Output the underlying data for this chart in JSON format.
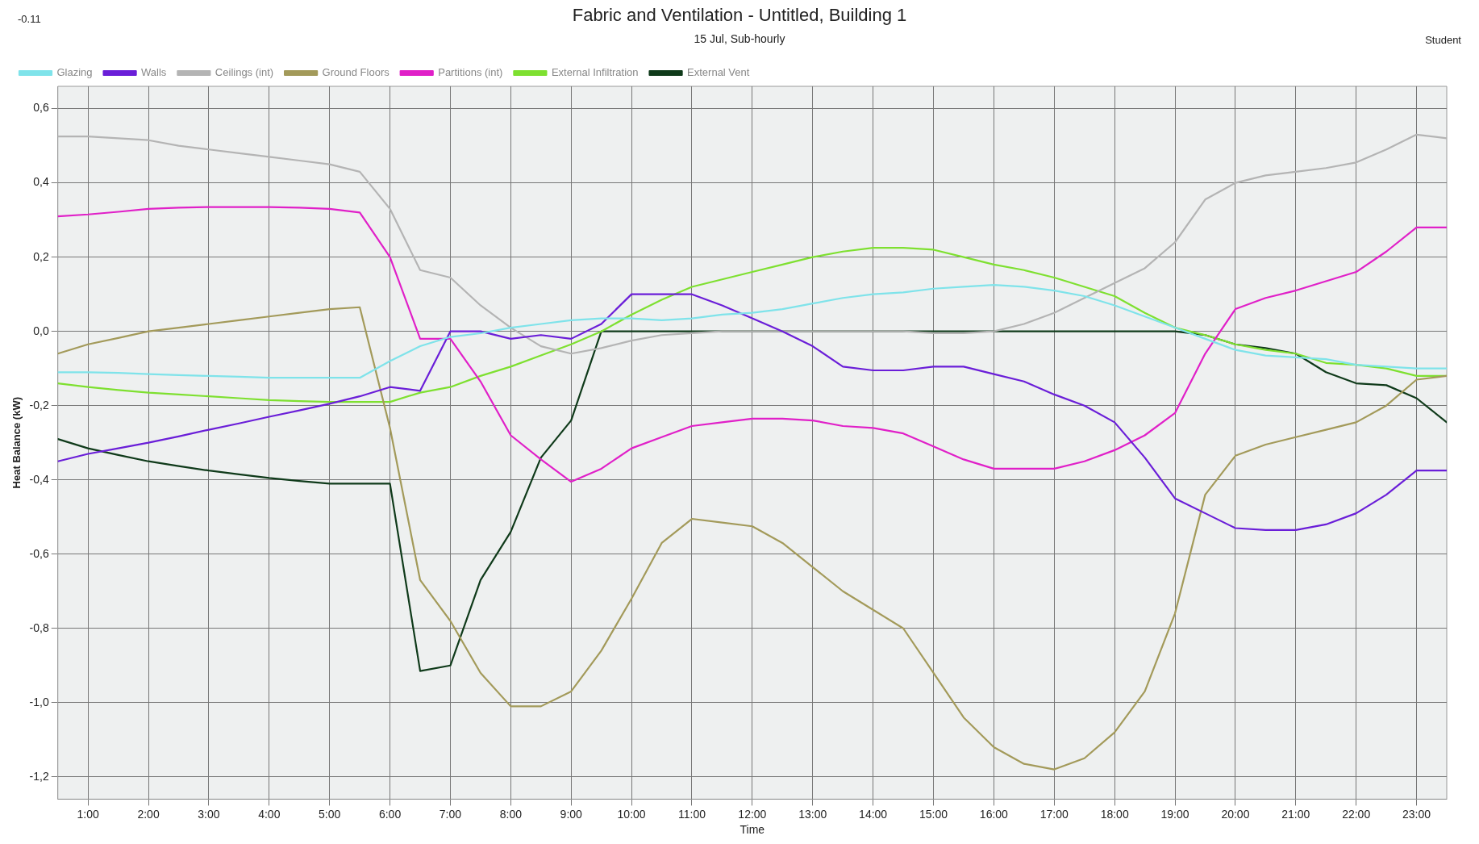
{
  "chart_data": {
    "type": "line",
    "title": "Fabric and Ventilation - Untitled, Building 1",
    "subtitle": "15 Jul, Sub-hourly",
    "xlabel": "Time",
    "ylabel": "Heat Balance (kW)",
    "annotations": [
      "-0.11",
      "Student"
    ],
    "x": [
      0.5,
      1,
      1.5,
      2,
      2.5,
      3,
      3.5,
      4,
      4.5,
      5,
      5.5,
      6,
      6.5,
      7,
      7.5,
      8,
      8.5,
      9,
      9.5,
      10,
      10.5,
      11,
      11.5,
      12,
      12.5,
      13,
      13.5,
      14,
      14.5,
      15,
      15.5,
      16,
      16.5,
      17,
      17.5,
      18,
      18.5,
      19,
      19.5,
      20,
      20.5,
      21,
      21.5,
      22,
      22.5,
      23,
      23.5
    ],
    "series": [
      {
        "name": "Glazing",
        "color": "#7fe3ea",
        "values": [
          -0.11,
          -0.11,
          -0.112,
          -0.115,
          -0.118,
          -0.12,
          -0.122,
          -0.125,
          -0.125,
          -0.125,
          -0.125,
          -0.08,
          -0.04,
          -0.015,
          -0.005,
          0.01,
          0.02,
          0.03,
          0.035,
          0.035,
          0.03,
          0.035,
          0.045,
          0.05,
          0.06,
          0.075,
          0.09,
          0.1,
          0.105,
          0.115,
          0.12,
          0.125,
          0.12,
          0.11,
          0.095,
          0.07,
          0.04,
          0.01,
          -0.02,
          -0.05,
          -0.065,
          -0.07,
          -0.075,
          -0.09,
          -0.095,
          -0.1,
          -0.1
        ]
      },
      {
        "name": "Walls",
        "color": "#6a1ed8",
        "values": [
          -0.35,
          -0.33,
          -0.315,
          -0.3,
          -0.283,
          -0.265,
          -0.248,
          -0.23,
          -0.213,
          -0.195,
          -0.175,
          -0.15,
          -0.16,
          0.0,
          0.0,
          -0.02,
          -0.01,
          -0.02,
          0.02,
          0.1,
          0.1,
          0.1,
          0.07,
          0.035,
          0.0,
          -0.04,
          -0.095,
          -0.105,
          -0.105,
          -0.095,
          -0.095,
          -0.115,
          -0.135,
          -0.17,
          -0.2,
          -0.245,
          -0.34,
          -0.45,
          -0.49,
          -0.53,
          -0.535,
          -0.535,
          -0.52,
          -0.49,
          -0.44,
          -0.375,
          -0.375
        ]
      },
      {
        "name": "Ceilings (int)",
        "color": "#b4b4b4",
        "values": [
          0.525,
          0.525,
          0.52,
          0.515,
          0.5,
          0.49,
          0.48,
          0.47,
          0.46,
          0.45,
          0.43,
          0.33,
          0.165,
          0.145,
          0.07,
          0.01,
          -0.04,
          -0.06,
          -0.045,
          -0.025,
          -0.01,
          -0.005,
          0.0,
          0.0,
          0.0,
          0.0,
          0.0,
          0.0,
          0.0,
          -0.005,
          -0.005,
          0.0,
          0.02,
          0.05,
          0.09,
          0.13,
          0.17,
          0.24,
          0.355,
          0.4,
          0.42,
          0.43,
          0.44,
          0.455,
          0.49,
          0.53,
          0.52
        ]
      },
      {
        "name": "Ground Floors",
        "color": "#a39a5a",
        "values": [
          -0.06,
          -0.035,
          -0.018,
          0.0,
          0.01,
          0.02,
          0.03,
          0.04,
          0.05,
          0.06,
          0.065,
          -0.26,
          -0.67,
          -0.78,
          -0.92,
          -1.01,
          -1.01,
          -0.97,
          -0.86,
          -0.72,
          -0.57,
          -0.505,
          -0.515,
          -0.525,
          -0.57,
          -0.635,
          -0.7,
          -0.75,
          -0.8,
          -0.92,
          -1.04,
          -1.12,
          -1.165,
          -1.18,
          -1.15,
          -1.08,
          -0.97,
          -0.76,
          -0.44,
          -0.335,
          -0.305,
          -0.285,
          -0.265,
          -0.245,
          -0.2,
          -0.13,
          -0.12
        ]
      },
      {
        "name": "Partitions (int)",
        "color": "#e020c8",
        "values": [
          0.31,
          0.315,
          0.322,
          0.33,
          0.333,
          0.335,
          0.335,
          0.335,
          0.333,
          0.33,
          0.32,
          0.2,
          -0.02,
          -0.02,
          -0.135,
          -0.28,
          -0.345,
          -0.405,
          -0.37,
          -0.315,
          -0.285,
          -0.255,
          -0.245,
          -0.235,
          -0.235,
          -0.24,
          -0.255,
          -0.26,
          -0.275,
          -0.31,
          -0.345,
          -0.37,
          -0.37,
          -0.37,
          -0.35,
          -0.32,
          -0.28,
          -0.22,
          -0.06,
          0.06,
          0.09,
          0.11,
          0.135,
          0.16,
          0.215,
          0.28,
          0.28
        ]
      },
      {
        "name": "External Infiltration",
        "color": "#7ee030",
        "values": [
          -0.14,
          -0.15,
          -0.158,
          -0.165,
          -0.17,
          -0.175,
          -0.18,
          -0.185,
          -0.188,
          -0.19,
          -0.19,
          -0.19,
          -0.165,
          -0.15,
          -0.12,
          -0.095,
          -0.065,
          -0.035,
          0.0,
          0.045,
          0.085,
          0.12,
          0.14,
          0.16,
          0.18,
          0.2,
          0.215,
          0.225,
          0.225,
          0.22,
          0.2,
          0.18,
          0.165,
          0.145,
          0.12,
          0.095,
          0.05,
          0.01,
          -0.01,
          -0.035,
          -0.05,
          -0.06,
          -0.085,
          -0.09,
          -0.1,
          -0.12,
          -0.12
        ]
      },
      {
        "name": "External Vent",
        "color": "#0f3a1a",
        "values": [
          -0.29,
          -0.315,
          -0.333,
          -0.35,
          -0.363,
          -0.375,
          -0.385,
          -0.395,
          -0.403,
          -0.41,
          -0.41,
          -0.41,
          -0.915,
          -0.9,
          -0.67,
          -0.54,
          -0.34,
          -0.24,
          0.0,
          0.0,
          0.0,
          0.0,
          0.0,
          0.0,
          0.0,
          0.0,
          0.0,
          0.0,
          0.0,
          0.0,
          0.0,
          0.0,
          0.0,
          0.0,
          0.0,
          0.0,
          0.0,
          0.0,
          -0.01,
          -0.035,
          -0.045,
          -0.06,
          -0.11,
          -0.14,
          -0.145,
          -0.18,
          -0.245
        ]
      }
    ],
    "xlim": [
      0.5,
      23.5
    ],
    "xticks": [
      {
        "value": 1,
        "label": "1:00"
      },
      {
        "value": 2,
        "label": "2:00"
      },
      {
        "value": 3,
        "label": "3:00"
      },
      {
        "value": 4,
        "label": "4:00"
      },
      {
        "value": 5,
        "label": "5:00"
      },
      {
        "value": 6,
        "label": "6:00"
      },
      {
        "value": 7,
        "label": "7:00"
      },
      {
        "value": 8,
        "label": "8:00"
      },
      {
        "value": 9,
        "label": "9:00"
      },
      {
        "value": 10,
        "label": "10:00"
      },
      {
        "value": 11,
        "label": "11:00"
      },
      {
        "value": 12,
        "label": "12:00"
      },
      {
        "value": 13,
        "label": "13:00"
      },
      {
        "value": 14,
        "label": "14:00"
      },
      {
        "value": 15,
        "label": "15:00"
      },
      {
        "value": 16,
        "label": "16:00"
      },
      {
        "value": 17,
        "label": "17:00"
      },
      {
        "value": 18,
        "label": "18:00"
      },
      {
        "value": 19,
        "label": "19:00"
      },
      {
        "value": 20,
        "label": "20:00"
      },
      {
        "value": 21,
        "label": "21:00"
      },
      {
        "value": 22,
        "label": "22:00"
      },
      {
        "value": 23,
        "label": "23:00"
      }
    ],
    "ylim": [
      -1.26,
      0.66
    ],
    "yticks": [
      {
        "value": -1.2,
        "label": "-1,2"
      },
      {
        "value": -1,
        "label": "-1,0"
      },
      {
        "value": -0.8,
        "label": "-0,8"
      },
      {
        "value": -0.6,
        "label": "-0,6"
      },
      {
        "value": -0.4,
        "label": "-0,4"
      },
      {
        "value": -0.2,
        "label": "-0,2"
      },
      {
        "value": 0,
        "label": "0,0"
      },
      {
        "value": 0.2,
        "label": "0,2"
      },
      {
        "value": 0.4,
        "label": "0,4"
      },
      {
        "value": 0.6,
        "label": "0,6"
      }
    ],
    "grid": true,
    "legend": "top",
    "marker": "none"
  }
}
